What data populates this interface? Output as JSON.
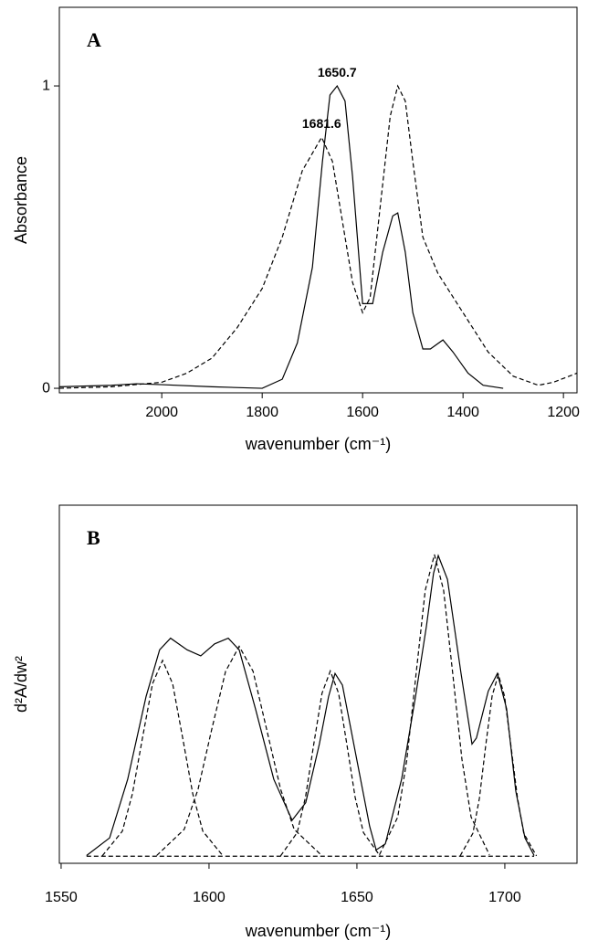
{
  "chart_data": [
    {
      "type": "line",
      "panel_label": "A",
      "x_label": "wavenumber (cm⁻¹)",
      "y_label": "Absorbance",
      "xlim": [
        2204,
        1173
      ],
      "ylim": [
        -0.015,
        1.26
      ],
      "xticks": [
        2000,
        1800,
        1600,
        1400,
        1200
      ],
      "yticks": [
        0,
        1
      ],
      "annotations": [
        {
          "text": "1650.7",
          "x": 1650.7,
          "y": 1.0
        },
        {
          "text": "1681.6",
          "x": 1681.6,
          "y": 0.83
        }
      ],
      "series": [
        {
          "color": "#000000",
          "dashed": false,
          "x": [
            2204,
            2100,
            2050,
            2000,
            1900,
            1800,
            1760,
            1730,
            1700,
            1680,
            1665,
            1650.7,
            1635,
            1620,
            1600,
            1580,
            1560,
            1540,
            1530,
            1515,
            1500,
            1480,
            1465,
            1440,
            1420,
            1390,
            1360,
            1320
          ],
          "values": [
            0.005,
            0.01,
            0.015,
            0.012,
            0.005,
            0,
            0.03,
            0.15,
            0.4,
            0.75,
            0.97,
            1.0,
            0.95,
            0.7,
            0.28,
            0.28,
            0.45,
            0.57,
            0.58,
            0.45,
            0.25,
            0.13,
            0.13,
            0.16,
            0.12,
            0.05,
            0.01,
            0
          ]
        },
        {
          "color": "#000000",
          "dashed": true,
          "x": [
            2204,
            2100,
            2000,
            1950,
            1900,
            1850,
            1800,
            1760,
            1720,
            1681.6,
            1660,
            1640,
            1620,
            1600,
            1585,
            1565,
            1545,
            1530,
            1515,
            1500,
            1480,
            1450,
            1400,
            1350,
            1300,
            1250,
            1220,
            1173
          ],
          "values": [
            0,
            0.005,
            0.02,
            0.05,
            0.1,
            0.2,
            0.33,
            0.5,
            0.72,
            0.83,
            0.75,
            0.55,
            0.35,
            0.25,
            0.3,
            0.6,
            0.9,
            1.0,
            0.95,
            0.75,
            0.5,
            0.38,
            0.25,
            0.12,
            0.04,
            0.01,
            0.02,
            0.05
          ]
        }
      ]
    },
    {
      "type": "line",
      "panel_label": "B",
      "x_label": "wavenumber (cm⁻¹)",
      "y_label": "d²A/dw²",
      "xlim": [
        1549.4,
        1724.4
      ],
      "ylim": [
        -0.015,
        1.0
      ],
      "xticks": [
        1550,
        1600,
        1650,
        1700
      ],
      "yticks": [],
      "annotations": [],
      "series": [
        {
          "color": "#000000",
          "dashed": false,
          "x": [
            1558.6,
            1566.4,
            1572.5,
            1578.7,
            1583.3,
            1587.0,
            1592.6,
            1597.2,
            1601.9,
            1606.5,
            1610.2,
            1615.7,
            1621.9,
            1628.1,
            1632.7,
            1637.3,
            1640.4,
            1642.6,
            1645.1,
            1649.7,
            1654.3,
            1656.5,
            1659.6,
            1665.1,
            1669.8,
            1673.5,
            1675.9,
            1677.5,
            1680.6,
            1685.2,
            1688.9,
            1690.4,
            1694.4,
            1697.5,
            1700.6,
            1703.7,
            1706.8,
            1709.9
          ],
          "values": [
            0.007,
            0.057,
            0.223,
            0.457,
            0.59,
            0.623,
            0.59,
            0.573,
            0.607,
            0.623,
            0.59,
            0.423,
            0.223,
            0.107,
            0.157,
            0.323,
            0.457,
            0.523,
            0.49,
            0.29,
            0.09,
            0.023,
            0.04,
            0.223,
            0.457,
            0.657,
            0.807,
            0.857,
            0.79,
            0.523,
            0.323,
            0.34,
            0.473,
            0.523,
            0.423,
            0.19,
            0.057,
            0.007
          ]
        },
        {
          "color": "#000000",
          "dashed": true,
          "x": [
            1563.9,
            1570.7,
            1574.1,
            1577.5,
            1580.9,
            1584.3,
            1587.7,
            1591.1,
            1594.5,
            1597.9,
            1604.7
          ],
          "values": [
            0.006,
            0.076,
            0.182,
            0.34,
            0.494,
            0.56,
            0.494,
            0.34,
            0.182,
            0.076,
            0.006
          ]
        },
        {
          "color": "#000000",
          "dashed": true,
          "x": [
            1582.3,
            1591.6,
            1596.3,
            1600.9,
            1605.6,
            1610.2,
            1614.9,
            1619.5,
            1624.2,
            1628.8,
            1638.1
          ],
          "values": [
            0.007,
            0.081,
            0.195,
            0.364,
            0.529,
            0.6,
            0.529,
            0.364,
            0.195,
            0.081,
            0.007
          ]
        },
        {
          "color": "#000000",
          "dashed": true,
          "x": [
            1624.2,
            1629.8,
            1632.6,
            1635.4,
            1638.2,
            1641.0,
            1643.8,
            1646.6,
            1649.4,
            1652.2,
            1657.8
          ],
          "values": [
            0.006,
            0.072,
            0.172,
            0.322,
            0.467,
            0.53,
            0.467,
            0.322,
            0.172,
            0.072,
            0.006
          ]
        },
        {
          "color": "#000000",
          "dashed": true,
          "x": [
            1657.6,
            1663.8,
            1666.9,
            1670.0,
            1673.1,
            1676.2,
            1679.3,
            1682.4,
            1685.5,
            1688.6,
            1694.8
          ],
          "values": [
            0.009,
            0.116,
            0.28,
            0.522,
            0.759,
            0.86,
            0.759,
            0.522,
            0.28,
            0.116,
            0.009
          ]
        },
        {
          "color": "#000000",
          "dashed": true,
          "x": [
            1684.9,
            1689.2,
            1691.4,
            1693.5,
            1695.7,
            1697.8,
            1699.9,
            1702.1,
            1704.3,
            1706.4,
            1710.7
          ],
          "values": [
            0.006,
            0.07,
            0.169,
            0.316,
            0.459,
            0.52,
            0.459,
            0.316,
            0.169,
            0.07,
            0.006
          ]
        },
        {
          "color": "#000000",
          "dashed": true,
          "x": [
            1558.6,
            1709.9
          ],
          "values": [
            0.005,
            0.005
          ]
        }
      ]
    }
  ]
}
